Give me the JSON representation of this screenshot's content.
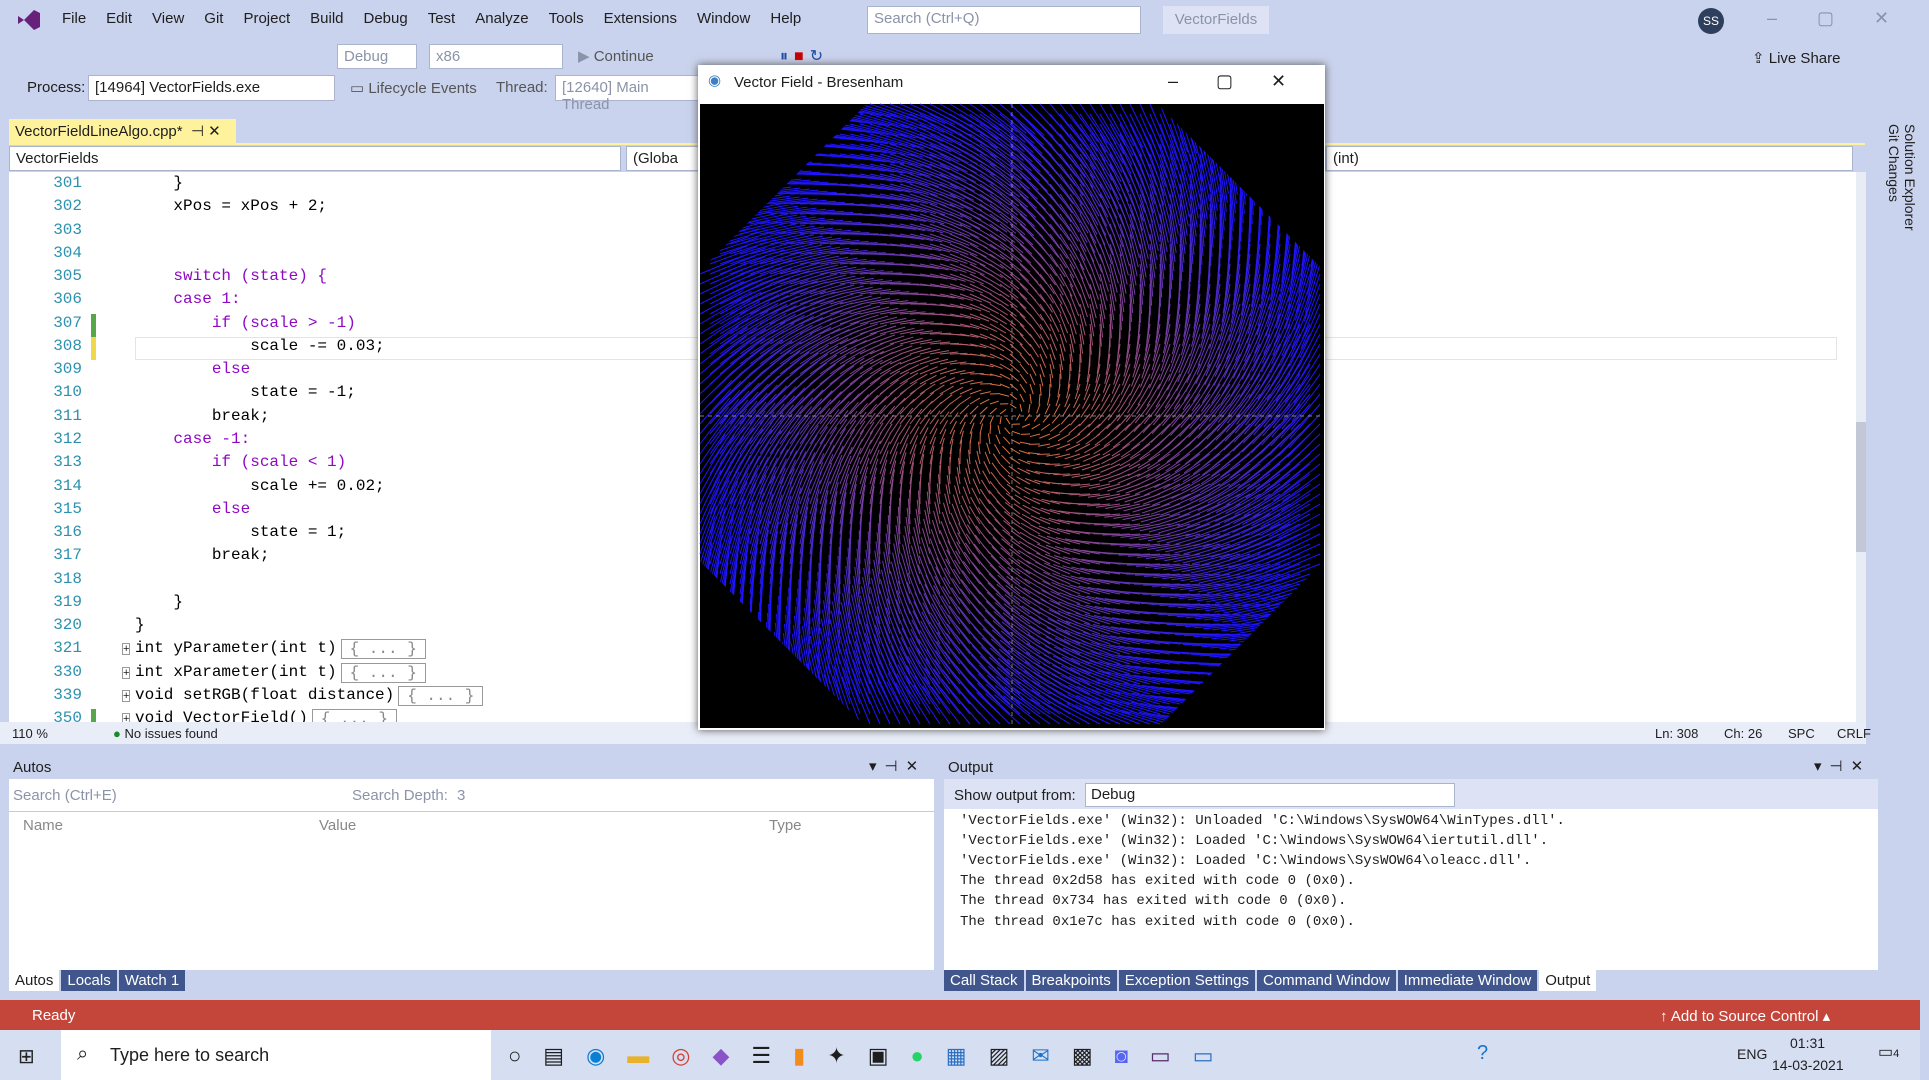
{
  "menu": [
    "File",
    "Edit",
    "View",
    "Git",
    "Project",
    "Build",
    "Debug",
    "Test",
    "Analyze",
    "Tools",
    "Extensions",
    "Window",
    "Help"
  ],
  "search": "Search (Ctrl+Q)",
  "solution_name": "VectorFields",
  "user_initials": "SS",
  "toolbar": {
    "config": "Debug",
    "platform": "x86",
    "continue": "Continue",
    "live_share": "Live Share"
  },
  "debug_bar": {
    "process_label": "Process:",
    "process": "[14964] VectorFields.exe",
    "lifecycle": "Lifecycle Events",
    "thread_label": "Thread:",
    "thread": "[12640] Main Thread"
  },
  "editor": {
    "tab": "VectorFieldLineAlgo.cpp*",
    "scope_project": "VectorFields",
    "scope_global": "(Globa",
    "scope_member": "(int)",
    "lines": [
      {
        "num": "301",
        "code": "    }"
      },
      {
        "num": "302",
        "code": "    xPos = xPos + 2;"
      },
      {
        "num": "303"
      },
      {
        "num": "304"
      },
      {
        "num": "305",
        "code": "    switch (state) {"
      },
      {
        "num": "306",
        "code": "    case 1:"
      },
      {
        "num": "307",
        "code": "        if (scale > -1)"
      },
      {
        "num": "308",
        "code": "            scale -= 0.03;"
      },
      {
        "num": "309",
        "code": "        else"
      },
      {
        "num": "310",
        "code": "            state = -1;"
      },
      {
        "num": "311",
        "code": "        break;"
      },
      {
        "num": "312",
        "code": "    case -1:"
      },
      {
        "num": "313",
        "code": "        if (scale < 1)"
      },
      {
        "num": "314",
        "code": "            scale += 0.02;"
      },
      {
        "num": "315",
        "code": "        else"
      },
      {
        "num": "316",
        "code": "            state = 1;"
      },
      {
        "num": "317",
        "code": "        break;"
      },
      {
        "num": "318"
      },
      {
        "num": "319",
        "code": "    }"
      },
      {
        "num": "320",
        "code": "}"
      },
      {
        "num": "321",
        "code": "int yParameter(int t)",
        "fold": "{ ... }"
      },
      {
        "num": "330",
        "code": "int xParameter(int t)",
        "fold": "{ ... }"
      },
      {
        "num": "339",
        "code": "void setRGB(float distance)",
        "fold": "{ ... }"
      },
      {
        "num": "350",
        "code": "void VectorField()",
        "fold": "{ ... }"
      }
    ],
    "zoom": "110 %",
    "issues": "No issues found",
    "ln": "Ln: 308",
    "ch": "Ch: 26",
    "spc": "SPC",
    "crlf": "CRLF"
  },
  "side_tabs": [
    "Solution Explorer",
    "Git Changes"
  ],
  "window": {
    "title": "Vector Field - Bresenham"
  },
  "autos": {
    "title": "Autos",
    "search": "Search (Ctrl+E)",
    "depth_label": "Search Depth:",
    "depth": "3",
    "columns": [
      "Name",
      "Value",
      "Type"
    ],
    "tabs": [
      "Autos",
      "Locals",
      "Watch 1"
    ]
  },
  "output": {
    "title": "Output",
    "show_from": "Show output from:",
    "source": "Debug",
    "lines": [
      "'VectorFields.exe' (Win32): Unloaded 'C:\\Windows\\SysWOW64\\WinTypes.dll'.",
      "'VectorFields.exe' (Win32): Loaded 'C:\\Windows\\SysWOW64\\iertutil.dll'.",
      "'VectorFields.exe' (Win32): Loaded 'C:\\Windows\\SysWOW64\\oleacc.dll'.",
      "The thread 0x2d58 has exited with code 0 (0x0).",
      "The thread 0x734 has exited with code 0 (0x0).",
      "The thread 0x1e7c has exited with code 0 (0x0)."
    ],
    "tabs": [
      "Call Stack",
      "Breakpoints",
      "Exception Settings",
      "Command Window",
      "Immediate Window",
      "Output"
    ]
  },
  "status": {
    "ready": "Ready",
    "source_control": "Add to Source Control"
  },
  "taskbar": {
    "search": "Type here to search",
    "lang": "ENG",
    "time": "01:31",
    "date": "14-03-2021",
    "notifications": "4"
  }
}
